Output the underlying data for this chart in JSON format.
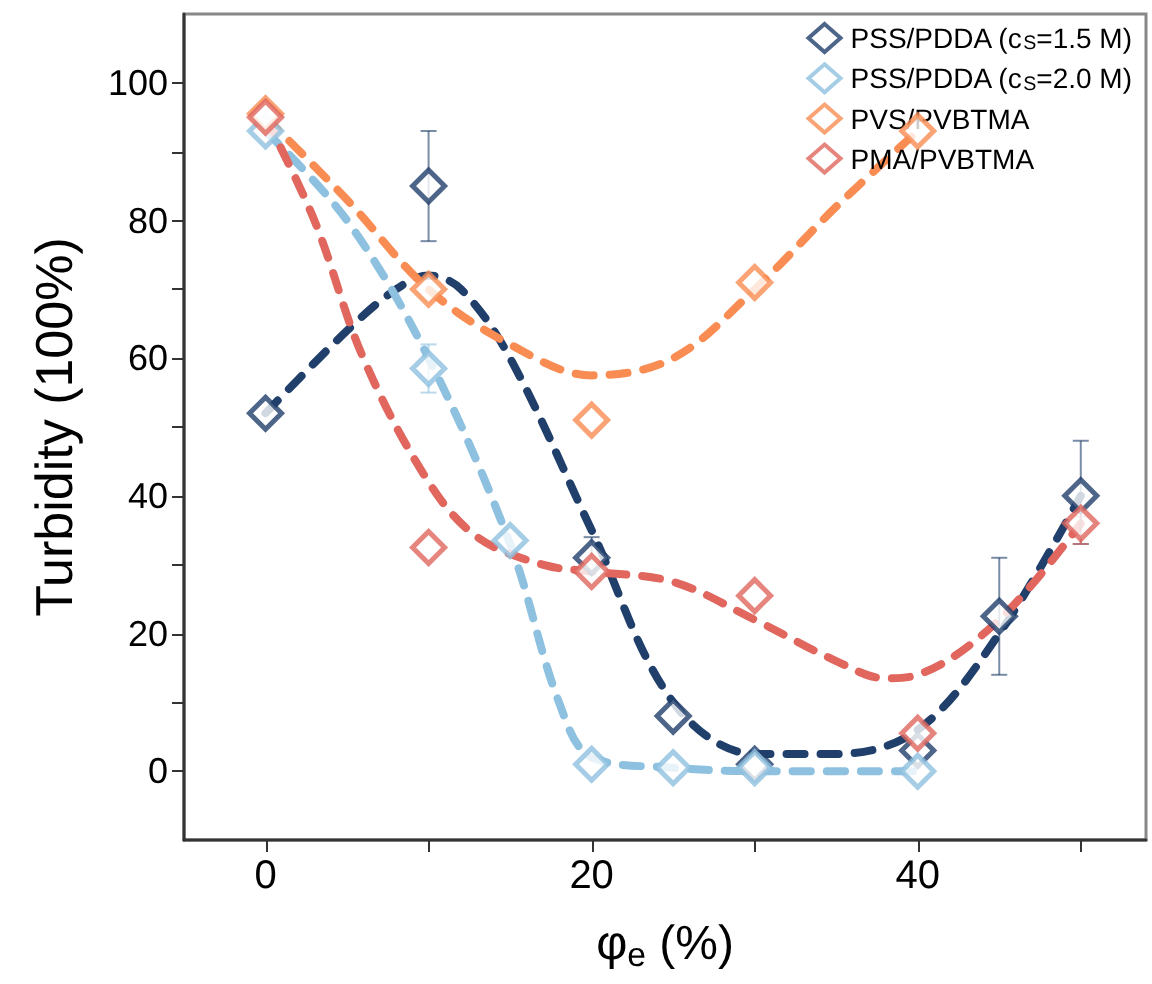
{
  "chart_data": {
    "type": "scatter",
    "xlabel": "φ$_{e}$ (%)",
    "ylabel": "Turbidity (100%)",
    "xlim": [
      -5,
      54
    ],
    "xticks": [
      0,
      {
        "value": 10,
        "label": null
      },
      20,
      {
        "value": 30,
        "label": null
      },
      40,
      {
        "value": 50,
        "label": null
      }
    ],
    "ylim": [
      -10,
      110
    ],
    "yticks": [
      0,
      {
        "value": 10,
        "label": null
      },
      20,
      {
        "value": 30,
        "label": null
      },
      40,
      {
        "value": 50,
        "label": null
      },
      60,
      {
        "value": 70,
        "label": null
      },
      80,
      {
        "value": 90,
        "label": null
      },
      100
    ],
    "grid": false,
    "legend": "top right",
    "marker": "diamond",
    "series": [
      {
        "name": "PSS/PDDA (c$_{S}$=1.5 M)",
        "color": "#203f6b",
        "x": [
          0,
          10,
          20,
          25,
          30,
          40,
          45,
          50
        ],
        "values": [
          52,
          85,
          31,
          8,
          1,
          3,
          22.5,
          40
        ],
        "errors": [
          null,
          8,
          [
            30,
            34
          ],
          null,
          null,
          null,
          [
            14,
            31
          ],
          [
            33,
            48
          ]
        ]
      },
      {
        "name": "PSS/PDDA (c$_{S}$=2.0 M)",
        "color": "#8ec0e0",
        "x": [
          0,
          10,
          15,
          20,
          25,
          30,
          40
        ],
        "values": [
          93,
          58.5,
          33.5,
          1,
          0.5,
          0.5,
          0
        ],
        "errors": [
          null,
          [
            55,
            62
          ],
          null,
          null,
          null,
          null,
          null
        ]
      },
      {
        "name": "PVS/PVBTMA",
        "color": "#f98c52",
        "x": [
          0,
          10,
          20,
          30,
          40
        ],
        "values": [
          95.5,
          70,
          51,
          71,
          93
        ]
      },
      {
        "name": "PMA/PVBTMA",
        "color": "#e0665e",
        "x": [
          0,
          10,
          20,
          30,
          40,
          50
        ],
        "values": [
          95,
          32.5,
          29,
          25.5,
          5.5,
          36
        ],
        "errors": [
          null,
          null,
          null,
          null,
          null,
          [
            33,
            37
          ]
        ]
      },
      {
        "type": "line",
        "line_style": "dashed",
        "marker": "none",
        "color": "#203f6b",
        "x": [
          0,
          5,
          8,
          10,
          12,
          15,
          20,
          25,
          30,
          35,
          40,
          45,
          50
        ],
        "values": [
          52,
          64,
          70,
          72,
          70,
          60,
          35,
          10,
          2.5,
          2.5,
          6,
          20,
          40
        ]
      },
      {
        "type": "line",
        "line_style": "dashed",
        "marker": "none",
        "color": "#8ec0e0",
        "x": [
          0,
          5,
          10,
          15,
          18,
          20,
          25,
          30,
          40
        ],
        "values": [
          93,
          80,
          60,
          33,
          10,
          2,
          0.5,
          0,
          0
        ]
      },
      {
        "type": "line",
        "line_style": "dashed",
        "marker": "none",
        "color": "#f98c52",
        "x": [
          0,
          5,
          10,
          15,
          20,
          25,
          30,
          35,
          40
        ],
        "values": [
          95,
          83,
          70,
          62,
          57.5,
          60,
          70,
          82,
          93
        ]
      },
      {
        "type": "line",
        "line_style": "dashed",
        "marker": "none",
        "color": "#e0665e",
        "x": [
          0,
          3,
          6,
          10,
          13,
          17,
          20,
          25,
          30,
          35,
          38,
          40,
          45,
          50
        ],
        "values": [
          95,
          80,
          60,
          42,
          34,
          30,
          29,
          27.5,
          22,
          16,
          13.5,
          14,
          22,
          36
        ]
      }
    ]
  }
}
